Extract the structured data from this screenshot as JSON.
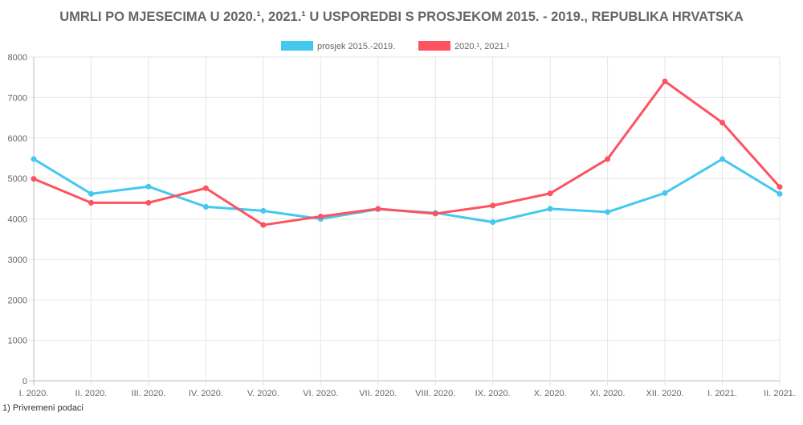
{
  "chart_data": {
    "type": "line",
    "title": "UMRLI PO MJESECIMA U 2020.¹, 2021.¹ U USPOREDBI S PROSJEKOM 2015. - 2019., REPUBLIKA HRVATSKA",
    "categories": [
      "I. 2020.",
      "II. 2020.",
      "III. 2020.",
      "IV. 2020.",
      "V. 2020.",
      "VI. 2020.",
      "VII. 2020.",
      "VIII. 2020.",
      "IX. 2020.",
      "X. 2020.",
      "XI. 2020.",
      "XII. 2020.",
      "I. 2021.",
      "II. 2021."
    ],
    "series": [
      {
        "name": "prosjek 2015.-2019.",
        "color": "#45c8f0",
        "values": [
          5480,
          4620,
          4800,
          4300,
          4200,
          4000,
          4240,
          4150,
          3920,
          4250,
          4170,
          4640,
          5480,
          4620
        ]
      },
      {
        "name": "2020.¹, 2021.¹",
        "color": "#fd5360",
        "values": [
          4990,
          4400,
          4400,
          4760,
          3850,
          4060,
          4250,
          4130,
          4330,
          4630,
          5480,
          7400,
          6380,
          4790
        ]
      }
    ],
    "ylim": [
      0,
      8000
    ],
    "yticks": [
      0,
      1000,
      2000,
      3000,
      4000,
      5000,
      6000,
      7000,
      8000
    ],
    "grid": true,
    "legend_position": "top"
  },
  "footnote": "1) Privremeni podaci"
}
